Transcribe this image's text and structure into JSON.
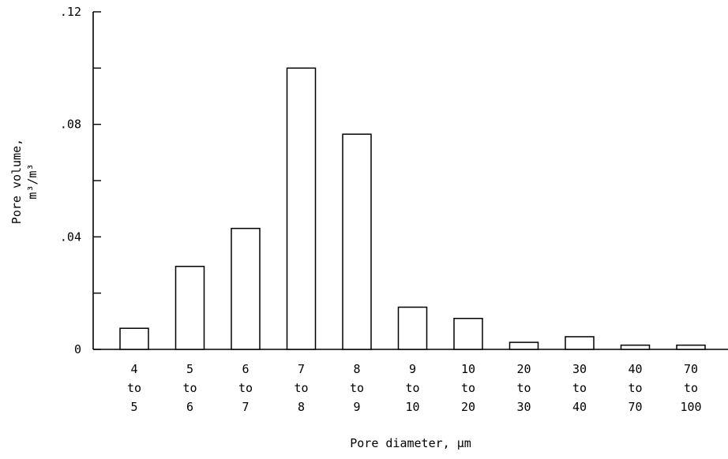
{
  "chart_data": {
    "type": "bar",
    "categories": [
      [
        "4",
        "to",
        "5"
      ],
      [
        "5",
        "to",
        "6"
      ],
      [
        "6",
        "to",
        "7"
      ],
      [
        "7",
        "to",
        "8"
      ],
      [
        "8",
        "to",
        "9"
      ],
      [
        "9",
        "to",
        "10"
      ],
      [
        "10",
        "to",
        "20"
      ],
      [
        "20",
        "to",
        "30"
      ],
      [
        "30",
        "to",
        "40"
      ],
      [
        "40",
        "to",
        "70"
      ],
      [
        "70",
        "to",
        "100"
      ]
    ],
    "values": [
      0.0075,
      0.0295,
      0.043,
      0.1,
      0.0765,
      0.015,
      0.011,
      0.0025,
      0.0045,
      0.0015,
      0.0015
    ],
    "ylim": [
      0,
      0.12
    ],
    "yticks": [
      0,
      0.02,
      0.04,
      0.06,
      0.08,
      0.1,
      0.12
    ],
    "ytick_labels": [
      "0",
      "",
      ".04",
      "",
      ".08",
      "",
      ".12"
    ],
    "xlabel": "Pore diameter, μm",
    "ylabel": "Pore volume,",
    "ylabel_unit": "m³/m³",
    "grid": false,
    "legend": "none"
  }
}
